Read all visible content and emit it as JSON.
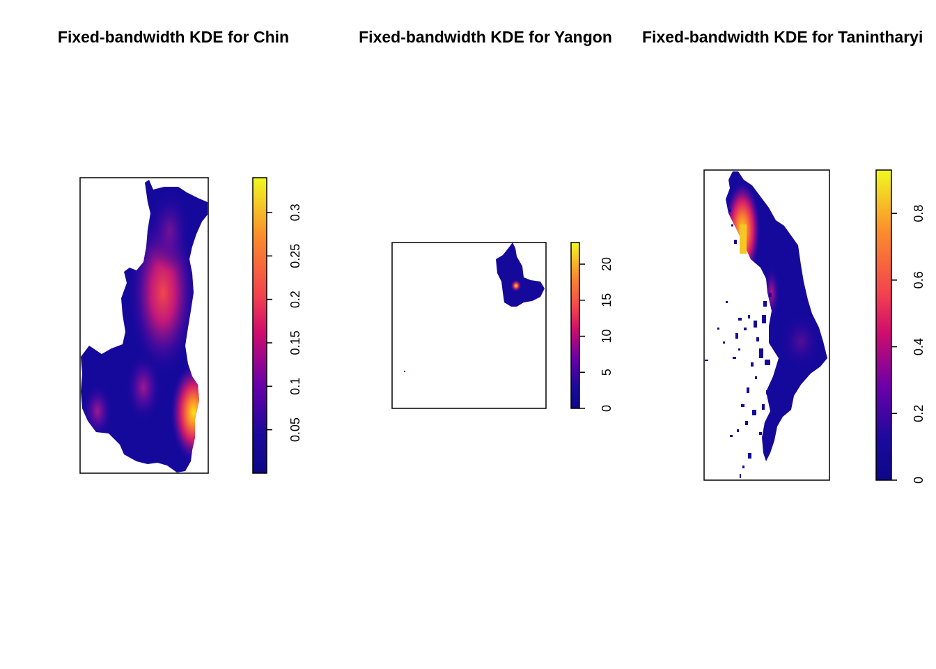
{
  "chart_data": [
    {
      "type": "heatmap",
      "title": "Fixed-bandwidth KDE for Chin",
      "colorbar": {
        "min": 0.0,
        "max": 0.34,
        "ticks": [
          0.05,
          0.1,
          0.15,
          0.2,
          0.25,
          0.3
        ],
        "tick_labels": [
          "0.05",
          "0.1",
          "0.15",
          "0.2",
          "0.25",
          "0.3"
        ]
      },
      "hotspots": [
        {
          "name": "central",
          "value": 0.22
        },
        {
          "name": "south-west",
          "value": 0.12
        },
        {
          "name": "south-east",
          "value": 0.34
        },
        {
          "name": "centre-south",
          "value": 0.14
        }
      ]
    },
    {
      "type": "heatmap",
      "title": "Fixed-bandwidth KDE for Yangon",
      "colorbar": {
        "min": 0,
        "max": 23,
        "ticks": [
          0,
          5,
          10,
          15,
          20
        ],
        "tick_labels": [
          "0",
          "5",
          "10",
          "15",
          "20"
        ]
      },
      "hotspots": [
        {
          "name": "city-centre",
          "value": 23
        }
      ]
    },
    {
      "type": "heatmap",
      "title": "Fixed-bandwidth KDE for Tanintharyi",
      "colorbar": {
        "min": 0,
        "max": 0.93,
        "ticks": [
          0,
          0.2,
          0.4,
          0.6,
          0.8
        ],
        "tick_labels": [
          "0",
          "0.2",
          "0.4",
          "0.6",
          "0.8"
        ]
      },
      "hotspots": [
        {
          "name": "north",
          "value": 0.93
        },
        {
          "name": "centre",
          "value": 0.28
        }
      ]
    }
  ]
}
